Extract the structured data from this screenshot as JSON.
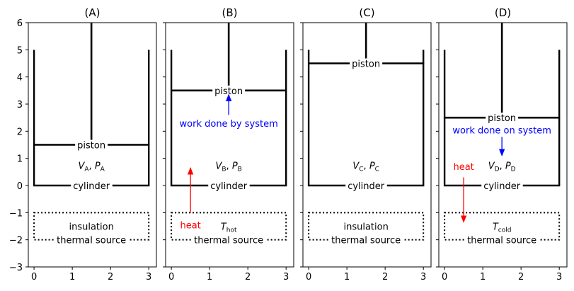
{
  "panels": [
    {
      "id": "A",
      "title": "(A)",
      "piston_level": 1.5,
      "piston_label": "piston",
      "cylinder_label": "cylinder",
      "state_label": {
        "v": "V",
        "v_sub": "A",
        "p": "P",
        "p_sub": "A"
      },
      "source_top": "insulation",
      "source_bottom": "thermal source",
      "heat": null,
      "work": null
    },
    {
      "id": "B",
      "title": "(B)",
      "piston_level": 3.5,
      "piston_label": "piston",
      "cylinder_label": "cylinder",
      "state_label": {
        "v": "V",
        "v_sub": "B",
        "p": "P",
        "p_sub": "B"
      },
      "source_top": {
        "t": "T",
        "t_sub": "hot"
      },
      "source_bottom": "thermal source",
      "heat": {
        "label": "heat",
        "direction": "up"
      },
      "work": {
        "label": "work done by system",
        "direction": "up"
      }
    },
    {
      "id": "C",
      "title": "(C)",
      "piston_level": 4.5,
      "piston_label": "piston",
      "cylinder_label": "cylinder",
      "state_label": {
        "v": "V",
        "v_sub": "C",
        "p": "P",
        "p_sub": "C"
      },
      "source_top": "insulation",
      "source_bottom": "thermal source",
      "heat": null,
      "work": null
    },
    {
      "id": "D",
      "title": "(D)",
      "piston_level": 2.5,
      "piston_label": "piston",
      "cylinder_label": "cylinder",
      "state_label": {
        "v": "V",
        "v_sub": "D",
        "p": "P",
        "p_sub": "D"
      },
      "source_top": {
        "t": "T",
        "t_sub": "cold"
      },
      "source_bottom": "thermal source",
      "heat": {
        "label": "heat",
        "direction": "down"
      },
      "work": {
        "label": "work done on system",
        "direction": "down"
      }
    }
  ],
  "axes": {
    "xlim": [
      -0.15,
      3.2
    ],
    "ylim": [
      -3,
      6
    ],
    "xticks": [
      "0",
      "1",
      "2",
      "3"
    ],
    "yticks": [
      "6",
      "5",
      "4",
      "3",
      "2",
      "1",
      "0",
      "−1",
      "−2",
      "−3"
    ]
  },
  "colors": {
    "heat": "#ff0000",
    "work": "#0000ff",
    "lines": "#000000"
  }
}
